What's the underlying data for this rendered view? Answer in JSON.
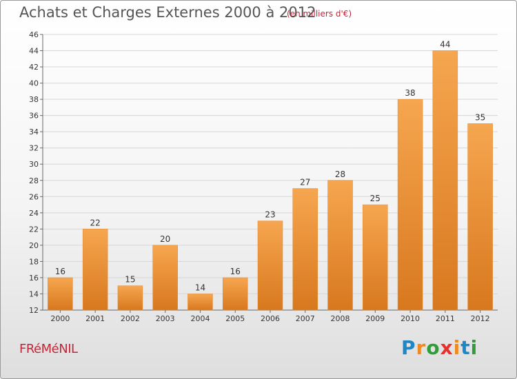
{
  "header": {
    "title": "Achats et Charges Externes 2000 à 2012",
    "subtitle": "(en milliers d'€)"
  },
  "footer": {
    "commune": "FRéMéNIL",
    "logo_letters": [
      "P",
      "r",
      "o",
      "x",
      "i",
      "t",
      "i"
    ],
    "logo_colors": [
      "#1f86c8",
      "#f08a1c",
      "#2f9e3a",
      "#e8302f",
      "#f08a1c",
      "#1f86c8",
      "#2f9e3a"
    ]
  },
  "chart_data": {
    "type": "bar",
    "title": "Achats et Charges Externes 2000 à 2012",
    "subtitle": "(en milliers d'€)",
    "xlabel": "",
    "ylabel": "",
    "categories": [
      "2000",
      "2001",
      "2002",
      "2003",
      "2004",
      "2005",
      "2006",
      "2007",
      "2008",
      "2009",
      "2010",
      "2011",
      "2012"
    ],
    "values": [
      16,
      22,
      15,
      20,
      14,
      16,
      23,
      27,
      28,
      25,
      38,
      44,
      35
    ],
    "ylim": [
      12,
      46
    ],
    "yticks": [
      12,
      14,
      16,
      18,
      20,
      22,
      24,
      26,
      28,
      30,
      32,
      34,
      36,
      38,
      40,
      42,
      44,
      46
    ],
    "grid": true,
    "bar_color_top": "#f6a650",
    "bar_color_bottom": "#d8781e"
  }
}
